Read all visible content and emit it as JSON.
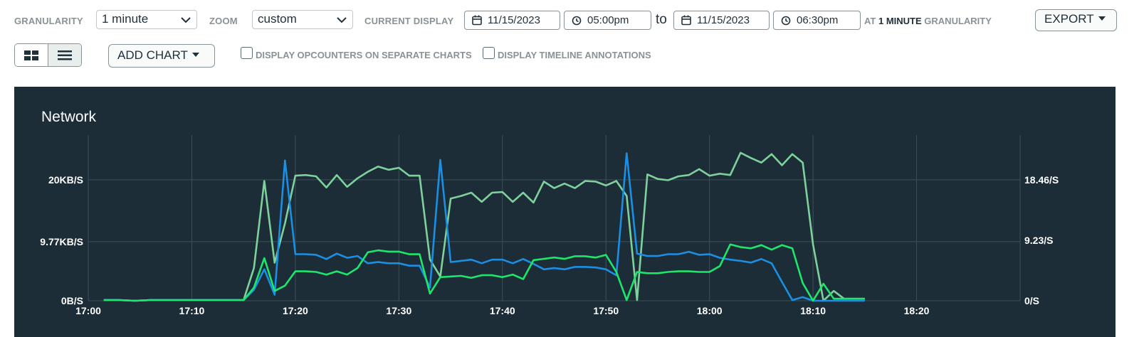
{
  "toolbar": {
    "granularity_label": "GRANULARITY",
    "granularity_value": "1 minute",
    "zoom_label": "ZOOM",
    "zoom_value": "custom",
    "current_display_label": "CURRENT DISPLAY",
    "start_date": "11/15/2023",
    "start_time": "05:00pm",
    "to_label": "to",
    "end_date": "11/15/2023",
    "end_time": "06:30pm",
    "at_prefix": "AT",
    "at_value": "1 MINUTE",
    "at_suffix": "GRANULARITY",
    "export_label": "EXPORT"
  },
  "toolbar2": {
    "add_chart_label": "ADD CHART",
    "opcounters_label": "DISPLAY OPCOUNTERS ON SEPARATE CHARTS",
    "annotations_label": "DISPLAY TIMELINE ANNOTATIONS"
  },
  "colors": {
    "panel_bg": "#1c2d38",
    "series_blue": "#1a8fe3",
    "series_green": "#1ee66b",
    "series_light_green": "#7fd19b",
    "grid": "#3d4f58"
  },
  "chart_data": {
    "type": "line",
    "title": "Network",
    "x_ticks": [
      "17:00",
      "17:10",
      "17:20",
      "17:30",
      "17:40",
      "17:50",
      "18:00",
      "18:10",
      "18:20"
    ],
    "y_left_ticks": [
      "0B/S",
      "9.77KB/S",
      "20KB/S"
    ],
    "y_right_ticks": [
      "0/S",
      "9.23/S",
      "18.46/S"
    ],
    "x_range_minutes": [
      0,
      90
    ],
    "y_left_range_kb": [
      0,
      27.4
    ],
    "y_right_range": [
      0,
      25.3
    ],
    "grid": true,
    "x": [
      1.5,
      3,
      4.5,
      6,
      7.5,
      9,
      10.5,
      12,
      13.5,
      15,
      16,
      17,
      18,
      19,
      20,
      21,
      22,
      23,
      24,
      25,
      26,
      27,
      28,
      29,
      30,
      31,
      32,
      33,
      34,
      35,
      36,
      37,
      38,
      39,
      40,
      41,
      42,
      43,
      44,
      45,
      46,
      47,
      48,
      49,
      50,
      51,
      52,
      53,
      54,
      55,
      56,
      57,
      58,
      59,
      60,
      61,
      62,
      63,
      64,
      65,
      66,
      67,
      68,
      69,
      70,
      71,
      72,
      73,
      74,
      75
    ],
    "series": [
      {
        "axis": "left",
        "unit": "KB/s",
        "values": [
          0.1,
          0.1,
          0,
          0.1,
          0.1,
          0.1,
          0.1,
          0.1,
          0.1,
          0.1,
          1.8,
          5.2,
          1,
          23.2,
          7.7,
          7.7,
          7.6,
          6.9,
          7.8,
          7.1,
          7.4,
          6.2,
          6.4,
          6.2,
          6.2,
          5.8,
          5.8,
          2.2,
          23.3,
          6.4,
          6.6,
          6.8,
          6.2,
          6.8,
          6.8,
          6.2,
          6.9,
          6.1,
          5.2,
          5.4,
          5.2,
          5.6,
          5.6,
          5.5,
          5.2,
          4.2,
          24.4,
          7.8,
          7.4,
          7.4,
          7.7,
          7.7,
          8.1,
          7.6,
          7.7,
          7.1,
          6.8,
          6.6,
          6.3,
          6.9,
          6.2,
          3.1,
          0.1,
          0.6,
          0,
          0,
          0,
          0,
          0,
          0
        ]
      },
      {
        "axis": "right",
        "unit": "/s",
        "values": [
          0.1,
          0.1,
          0,
          0.1,
          0.1,
          0.1,
          0.1,
          0.1,
          0.1,
          0.1,
          2,
          6.5,
          1.5,
          2.3,
          4.5,
          4.5,
          4.4,
          4,
          4.5,
          4,
          5,
          7.4,
          7.7,
          7.5,
          7.5,
          7.1,
          7.1,
          1.1,
          3.6,
          3.7,
          3.8,
          3.5,
          3.9,
          3.9,
          3.6,
          4,
          3.3,
          6.2,
          6.4,
          6.6,
          6.4,
          6.8,
          6.8,
          6.6,
          7,
          4.4,
          0.1,
          4.4,
          4.2,
          4.2,
          4.4,
          4.5,
          4.5,
          4.4,
          4.4,
          5.3,
          8.6,
          8.2,
          8,
          8.5,
          7.8,
          8.5,
          8,
          2.7,
          0,
          2.6,
          0.3,
          0.3,
          0.3,
          0.3
        ]
      },
      {
        "axis": "right",
        "unit": "/s",
        "values": [
          0.1,
          0.1,
          0,
          0.1,
          0.1,
          0.1,
          0.1,
          0.1,
          0.1,
          0.1,
          5,
          18.3,
          5.8,
          11.8,
          19.1,
          19.2,
          19,
          17.3,
          19.2,
          17.4,
          18.7,
          19.7,
          20.5,
          20,
          20.3,
          19.1,
          19.1,
          6.3,
          3.7,
          15.6,
          16,
          16.5,
          15.1,
          16.5,
          16.6,
          15.1,
          16.5,
          15,
          18.2,
          17.2,
          17.9,
          17.2,
          18.3,
          18.2,
          17.6,
          18.3,
          16,
          0.1,
          19.3,
          18.6,
          18.4,
          19,
          19.2,
          20.1,
          19.1,
          19.4,
          19.2,
          22.6,
          21.8,
          21.1,
          22.4,
          20.7,
          22.4,
          21.1,
          8.6,
          0,
          1.5,
          0.3,
          0.3,
          0.3
        ]
      }
    ]
  }
}
